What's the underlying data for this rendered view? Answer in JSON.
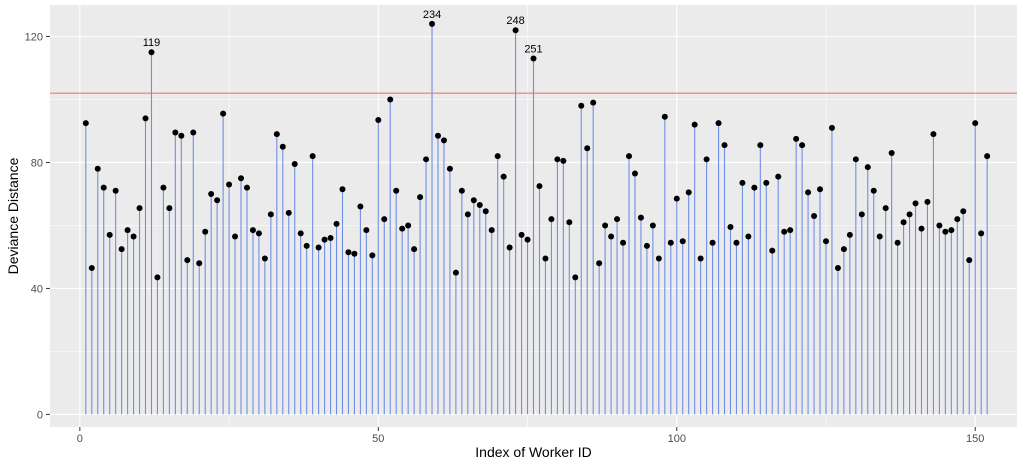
{
  "colors": {
    "panel": "#EBEBEB",
    "grid_major": "#FFFFFF",
    "stem": "#6F8FE6",
    "point": "#000000",
    "threshold_line": "#F8766D",
    "tick_text": "#4D4D4D"
  },
  "chart_data": {
    "type": "scatter",
    "style": "lollipop",
    "title": "",
    "xlabel": "Index of Worker ID",
    "ylabel": "Deviance Distance",
    "xlim": [
      -5,
      157
    ],
    "ylim": [
      -4,
      130
    ],
    "grid": true,
    "xticks": [
      0,
      50,
      100,
      150
    ],
    "yticks": [
      0,
      40,
      80,
      120
    ],
    "xtick_labels": [
      "0",
      "50",
      "100",
      "150"
    ],
    "ytick_labels": [
      "0",
      "40",
      "80",
      "120"
    ],
    "threshold": 102,
    "x": [
      1,
      2,
      3,
      4,
      5,
      6,
      7,
      8,
      9,
      10,
      11,
      12,
      13,
      14,
      15,
      16,
      17,
      18,
      19,
      20,
      21,
      22,
      23,
      24,
      25,
      26,
      27,
      28,
      29,
      30,
      31,
      32,
      33,
      34,
      35,
      36,
      37,
      38,
      39,
      40,
      41,
      42,
      43,
      44,
      45,
      46,
      47,
      48,
      49,
      50,
      51,
      52,
      53,
      54,
      55,
      56,
      57,
      58,
      59,
      60,
      61,
      62,
      63,
      64,
      65,
      66,
      67,
      68,
      69,
      70,
      71,
      72,
      73,
      74,
      75,
      76,
      77,
      78,
      79,
      80,
      81,
      82,
      83,
      84,
      85,
      86,
      87,
      88,
      89,
      90,
      91,
      92,
      93,
      94,
      95,
      96,
      97,
      98,
      99,
      100,
      101,
      102,
      103,
      104,
      105,
      106,
      107,
      108,
      109,
      110,
      111,
      112,
      113,
      114,
      115,
      116,
      117,
      118,
      119,
      120,
      121,
      122,
      123,
      124,
      125,
      126,
      127,
      128,
      129,
      130,
      131,
      132,
      133,
      134,
      135,
      136,
      137,
      138,
      139,
      140,
      141,
      142,
      143,
      144,
      145,
      146,
      147,
      148,
      149,
      150,
      151,
      152
    ],
    "y": [
      92.5,
      46.5,
      78,
      72,
      57,
      71,
      52.5,
      58.5,
      56.5,
      65.5,
      94,
      115,
      43.5,
      72,
      65.5,
      89.5,
      88.5,
      49,
      89.5,
      48,
      58,
      70,
      68,
      95.5,
      73,
      56.5,
      75,
      72,
      58.5,
      57.5,
      49.5,
      63.5,
      89,
      85,
      64,
      79.5,
      57.5,
      53.5,
      82,
      53,
      55.5,
      56,
      60.5,
      71.5,
      51.5,
      51,
      66,
      58.5,
      50.5,
      93.5,
      62,
      100,
      71,
      59,
      60,
      52.5,
      69,
      81,
      124,
      88.5,
      87,
      78,
      45,
      71,
      63.5,
      68,
      66.5,
      64.5,
      58.5,
      82,
      75.5,
      53,
      122,
      57,
      55.5,
      113,
      72.5,
      49.5,
      62,
      81,
      80.5,
      61,
      43.5,
      98,
      84.5,
      99,
      48,
      60,
      56.5,
      62,
      54.5,
      82,
      76.5,
      62.5,
      53.5,
      60,
      49.5,
      94.5,
      54.5,
      68.5,
      55,
      70.5,
      92,
      49.5,
      81,
      54.5,
      92.5,
      85.5,
      59.5,
      54.5,
      73.5,
      56.5,
      72,
      85.5,
      73.5,
      52,
      75.5,
      58,
      58.5,
      87.5,
      85.5,
      70.5,
      63,
      71.5,
      55,
      91,
      46.5,
      52.5,
      57,
      81,
      63.5,
      78.5,
      71,
      56.5,
      65.5,
      83,
      54.5,
      61,
      63.5,
      67,
      59,
      67.5,
      89,
      60,
      58,
      58.5,
      62,
      64.5,
      49,
      92.5,
      57.5,
      82
    ],
    "annotations": [
      {
        "x": 12,
        "y": 115,
        "label": "119"
      },
      {
        "x": 59,
        "y": 124,
        "label": "234"
      },
      {
        "x": 73,
        "y": 122,
        "label": "248"
      },
      {
        "x": 76,
        "y": 113,
        "label": "251"
      }
    ]
  }
}
